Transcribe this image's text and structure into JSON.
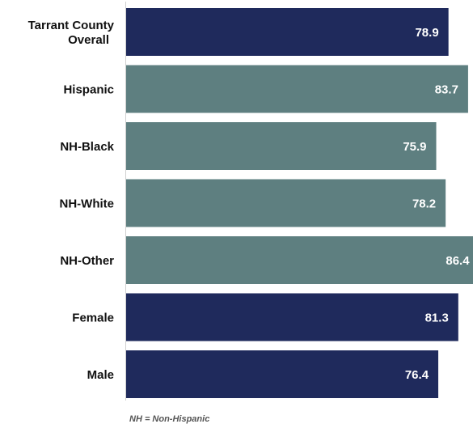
{
  "chart_data": {
    "type": "bar",
    "orientation": "horizontal",
    "categories": [
      [
        "Tarrant County",
        "Overall"
      ],
      [
        "Hispanic"
      ],
      [
        "NH-Black"
      ],
      [
        "NH-White"
      ],
      [
        "NH-Other"
      ],
      [
        "Female"
      ],
      [
        "Male"
      ]
    ],
    "values": [
      78.9,
      83.7,
      75.9,
      78.2,
      86.4,
      81.3,
      76.4
    ],
    "value_labels": [
      "78.9",
      "83.7",
      "75.9",
      "78.2",
      "86.4",
      "81.3",
      "76.4"
    ],
    "bar_colors": [
      "#1f2a5c",
      "#5e7f80",
      "#5e7f80",
      "#5e7f80",
      "#5e7f80",
      "#1f2a5c",
      "#1f2a5c"
    ],
    "xlim": [
      0,
      84.9
    ],
    "grid": false,
    "legend": "none",
    "title": "",
    "xlabel": "",
    "ylabel": ""
  },
  "footnote": "NH = Non-Hispanic"
}
